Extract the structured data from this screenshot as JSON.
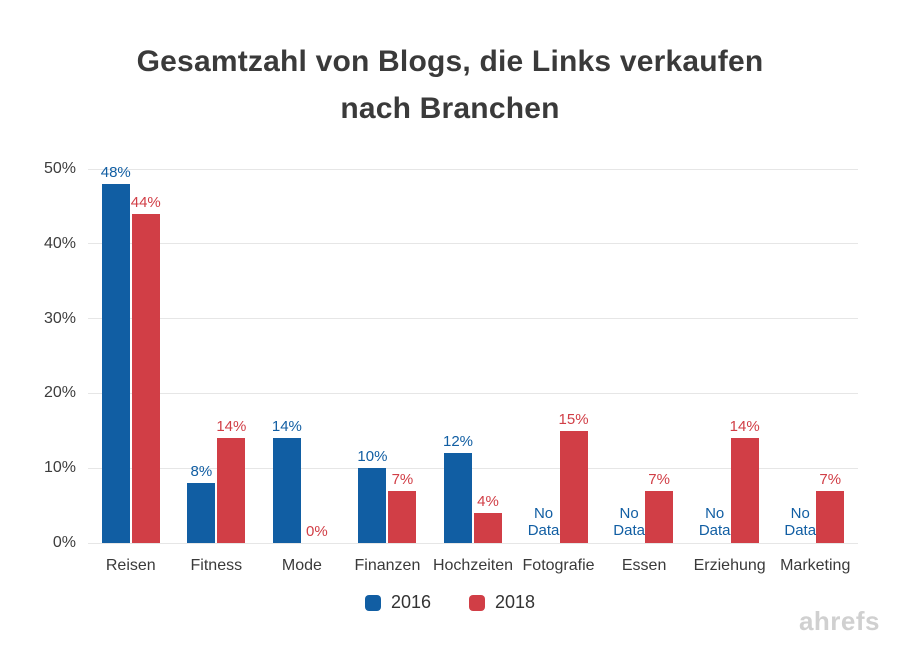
{
  "title": {
    "line1": "Gesamtzahl von Blogs, die Links verkaufen",
    "line2": "nach Branchen"
  },
  "watermark": "ahrefs",
  "colors": {
    "series_2016": "#115ea3",
    "series_2018": "#d13e46",
    "grid": "#e6e6e6",
    "axis_text": "#3d3d3d",
    "category_text": "#3a3a3a",
    "title_text": "#3a3a3a",
    "watermark_text": "#d0d0d0"
  },
  "chart_data": {
    "type": "bar",
    "title": "Gesamtzahl von Blogs, die Links verkaufen nach Branchen",
    "categories": [
      "Reisen",
      "Fitness",
      "Mode",
      "Finanzen",
      "Hochzeiten",
      "Fotografie",
      "Essen",
      "Erziehung",
      "Marketing"
    ],
    "series": [
      {
        "name": "2016",
        "color": "#115ea3",
        "values": [
          48,
          8,
          14,
          10,
          12,
          null,
          null,
          null,
          null
        ],
        "labels": [
          "48%",
          "8%",
          "14%",
          "10%",
          "12%",
          "No Data",
          "No Data",
          "No Data",
          "No Data"
        ]
      },
      {
        "name": "2018",
        "color": "#d13e46",
        "values": [
          44,
          14,
          0,
          7,
          4,
          15,
          7,
          14,
          7
        ],
        "labels": [
          "44%",
          "14%",
          "0%",
          "7%",
          "4%",
          "15%",
          "7%",
          "14%",
          "7%"
        ]
      }
    ],
    "no_data_lines": [
      "No",
      "Data"
    ],
    "xlabel": "",
    "ylabel": "",
    "y_axis": {
      "min": 0,
      "max": 50,
      "ticks": [
        0,
        10,
        20,
        30,
        40,
        50
      ],
      "tick_labels": [
        "0%",
        "10%",
        "20%",
        "30%",
        "40%",
        "50%"
      ]
    },
    "grid": true,
    "legend_position": "bottom"
  }
}
